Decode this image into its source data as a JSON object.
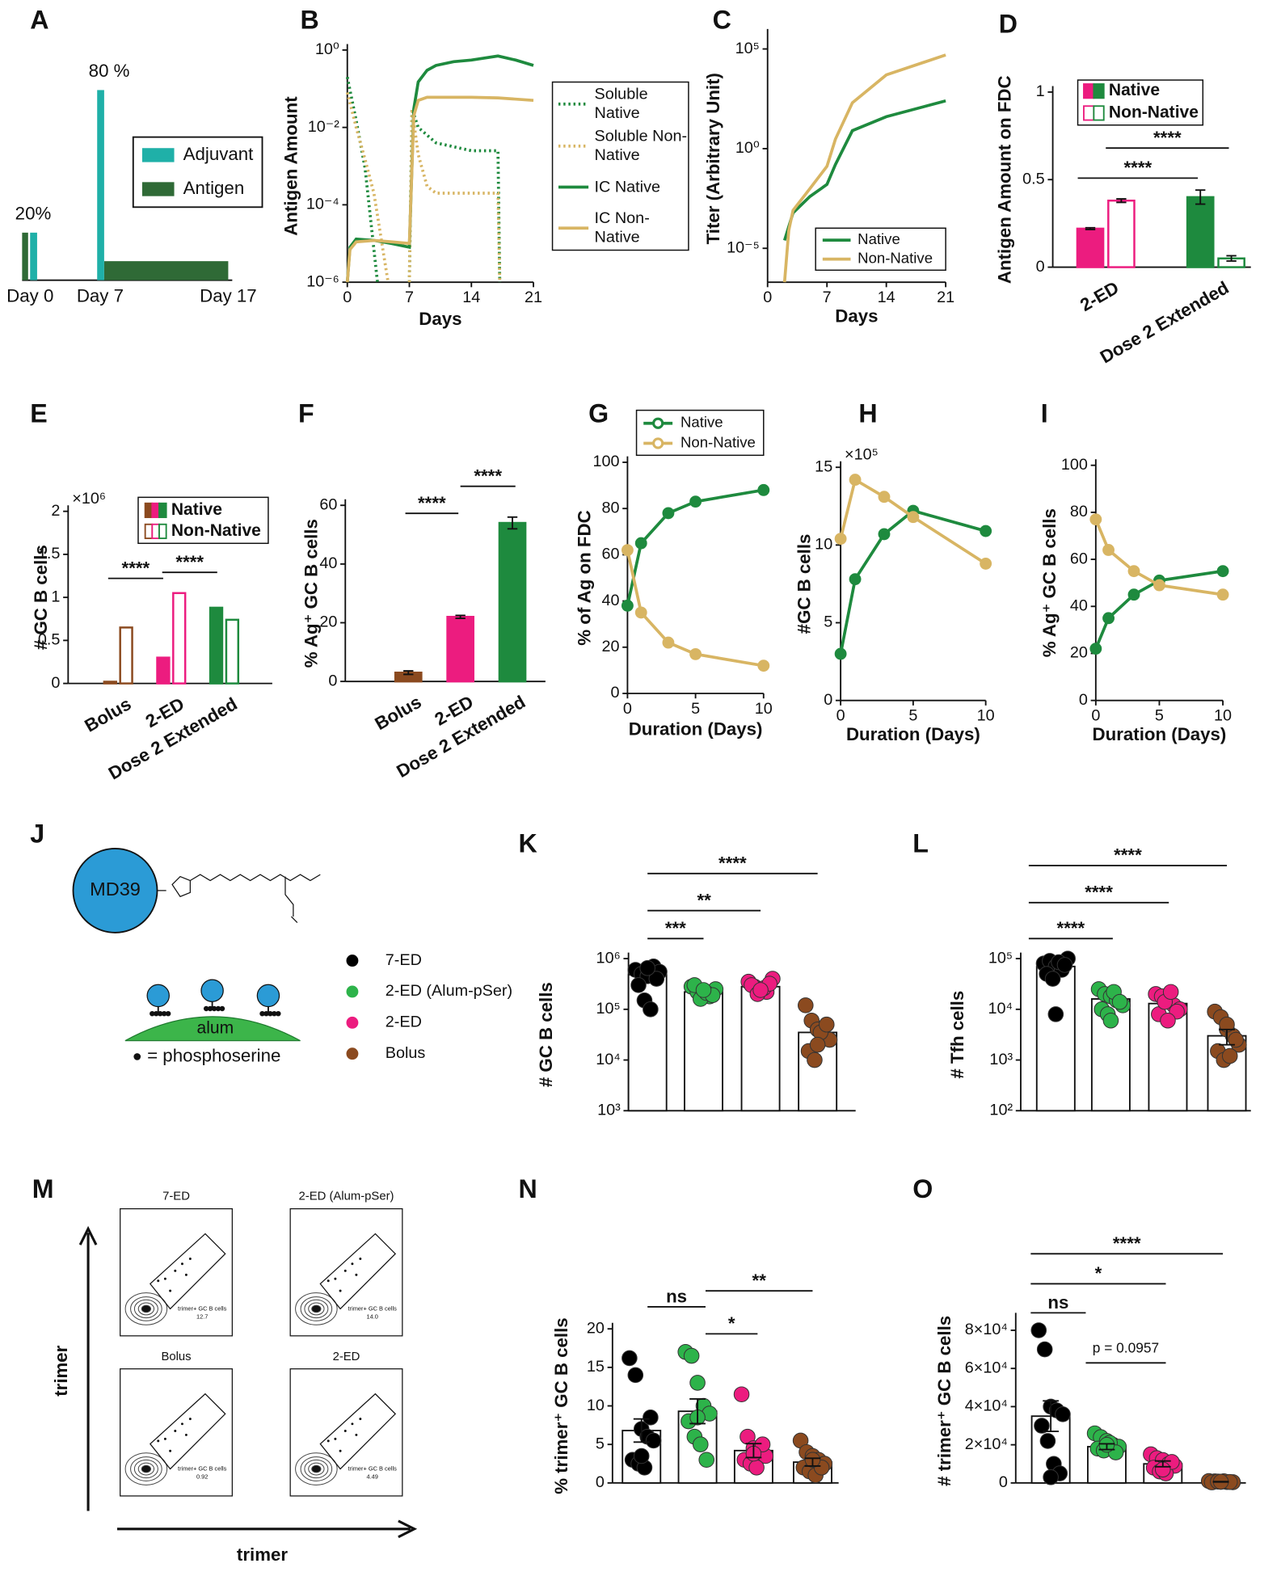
{
  "chart_data": [
    {
      "type": "timeline",
      "panel": "A",
      "x": [
        "Day 0",
        "Day 7",
        "Day 17"
      ],
      "series": [
        {
          "name": "Adjuvant",
          "color": "#1fb0a8",
          "values": [
            20,
            80,
            null
          ],
          "value_labels": [
            "20%",
            "80 %",
            null
          ]
        },
        {
          "name": "Antigen",
          "color": "#2f6a36",
          "values": [
            20,
            8,
            null
          ]
        }
      ]
    },
    {
      "type": "line",
      "panel": "B",
      "xlabel": "Days",
      "ylabel": "Antigen Amount",
      "log_y": true,
      "xlim": [
        0,
        21
      ],
      "xticks": [
        0,
        7,
        14,
        21
      ],
      "ylim": [
        1e-06,
        1
      ],
      "yticks": [
        {
          "value": 1e-06,
          "label": "10⁻⁶"
        },
        {
          "value": 0.0001,
          "label": "10⁻⁴"
        },
        {
          "value": 0.01,
          "label": "10⁻²"
        },
        {
          "value": 1,
          "label": "10⁰"
        }
      ],
      "series": [
        {
          "name": "Soluble Native",
          "color": "#1e8a3e",
          "line_style": "dotted",
          "x": [
            0,
            1,
            2,
            3.4,
            5,
            7,
            7.3,
            8,
            10,
            14,
            17,
            17.2
          ],
          "values": [
            0.2,
            0.015,
            0.0009,
            1e-06,
            null,
            1e-06,
            0.03,
            0.01,
            0.004,
            0.0025,
            0.0025,
            1e-06
          ]
        },
        {
          "name": "Soluble Non-Native",
          "color": "#d8b563",
          "line_style": "dotted",
          "x": [
            0,
            1,
            2,
            3,
            4.6,
            5,
            7,
            7.3,
            8,
            9,
            10,
            14,
            17,
            17.2
          ],
          "values": [
            0.08,
            0.01,
            0.0015,
            0.0002,
            1e-06,
            null,
            1e-06,
            0.03,
            0.002,
            0.0003,
            0.0002,
            0.0002,
            0.0002,
            1e-06
          ]
        },
        {
          "name": "IC Native",
          "color": "#1e8a3e",
          "line_style": "solid",
          "x": [
            0,
            0.3,
            1,
            3,
            5,
            7,
            7.5,
            8,
            9,
            10,
            12,
            14,
            17,
            19,
            21
          ],
          "values": [
            1e-06,
            8e-06,
            1.3e-05,
            1.2e-05,
            1e-05,
            8e-06,
            0.03,
            0.15,
            0.3,
            0.4,
            0.5,
            0.55,
            0.7,
            0.55,
            0.4
          ]
        },
        {
          "name": "IC Non-Native",
          "color": "#d8b563",
          "line_style": "solid",
          "x": [
            0,
            0.3,
            1,
            3,
            5,
            7,
            7.5,
            8,
            9,
            14,
            17,
            21
          ],
          "values": [
            1e-06,
            7e-06,
            1.1e-05,
            1.2e-05,
            1.1e-05,
            1e-05,
            0.02,
            0.05,
            0.06,
            0.06,
            0.058,
            0.05
          ]
        }
      ]
    },
    {
      "type": "line",
      "panel": "C",
      "xlabel": "Days",
      "ylabel": "Titer (Arbitrary Unit)",
      "log_y": true,
      "xlim": [
        0,
        21
      ],
      "xticks": [
        0,
        7,
        14,
        21
      ],
      "ylim": [
        2e-07,
        500000.0
      ],
      "yticks": [
        {
          "value": 1e-05,
          "label": "10⁻⁵"
        },
        {
          "value": 1,
          "label": "10⁰"
        },
        {
          "value": 100000,
          "label": "10⁵"
        }
      ],
      "series": [
        {
          "name": "Native",
          "color": "#1e8a3e",
          "line_style": "solid",
          "x": [
            2,
            3,
            5,
            7,
            8,
            10,
            14,
            21
          ],
          "values": [
            2.5e-05,
            0.0006,
            0.004,
            0.016,
            0.16,
            8,
            40,
            250
          ]
        },
        {
          "name": "Non-Native",
          "color": "#d8b563",
          "line_style": "solid",
          "x": [
            2,
            2.5,
            3,
            5,
            7,
            8,
            10,
            14,
            21
          ],
          "values": [
            2e-07,
            8e-05,
            0.0008,
            0.01,
            0.13,
            3,
            200,
            5000,
            50000
          ]
        }
      ]
    },
    {
      "type": "bar",
      "panel": "D",
      "ylabel": "Antigen Amount on FDC",
      "categories": [
        "2-ED",
        "Dose 2 Extended"
      ],
      "category_colors": [
        "#ec1c7f",
        "#1e8a3e"
      ],
      "ylim": [
        0,
        1
      ],
      "yticks": [
        0,
        0.5,
        1
      ],
      "series": [
        {
          "name": "Native",
          "fill": "solid",
          "values": [
            0.22,
            0.4
          ],
          "errors": [
            0.005,
            0.04
          ]
        },
        {
          "name": "Non-Native",
          "fill": "hollow",
          "values": [
            0.38,
            0.05
          ],
          "errors": [
            0.01,
            0.015
          ]
        }
      ],
      "significance": [
        "****",
        "****"
      ]
    },
    {
      "type": "bar",
      "panel": "E",
      "ylabel": "# GC B cells",
      "y_multiplier": "×10⁶",
      "categories": [
        "Bolus",
        "2-ED",
        "Dose 2 Extended"
      ],
      "category_colors": [
        "#8b4a1f",
        "#ec1c7f",
        "#1e8a3e"
      ],
      "ylim": [
        0,
        2
      ],
      "yticks": [
        0,
        0.5,
        1,
        1.5,
        2
      ],
      "series": [
        {
          "name": "Native",
          "fill": "solid",
          "values": [
            0.02,
            0.3,
            0.88
          ]
        },
        {
          "name": "Non-Native",
          "fill": "hollow",
          "values": [
            0.65,
            1.05,
            0.74
          ]
        }
      ],
      "significance": [
        "****",
        "****"
      ]
    },
    {
      "type": "bar",
      "panel": "F",
      "ylabel": "% Ag⁺ GC B cells",
      "categories": [
        "Bolus",
        "2-ED",
        "Dose 2 Extended"
      ],
      "category_colors": [
        "#8b4a1f",
        "#ec1c7f",
        "#1e8a3e"
      ],
      "ylim": [
        0,
        60
      ],
      "yticks": [
        0,
        20,
        40,
        60
      ],
      "values": [
        3,
        22,
        54
      ],
      "errors": [
        0.6,
        0.5,
        2
      ],
      "significance": [
        "****",
        "****"
      ]
    },
    {
      "type": "line",
      "panel": "G",
      "markers": true,
      "xlabel": "Duration (Days)",
      "ylabel": "% of Ag on FDC",
      "xlim": [
        0,
        10
      ],
      "xticks": [
        0,
        5,
        10
      ],
      "ylim": [
        0,
        100
      ],
      "yticks": [
        0,
        20,
        40,
        60,
        80,
        100
      ],
      "x": [
        0,
        1,
        3,
        5,
        10
      ],
      "series": [
        {
          "name": "Native",
          "color": "#1e8a3e",
          "line_style": "solid",
          "values": [
            38,
            65,
            78,
            83,
            88
          ]
        },
        {
          "name": "Non-Native",
          "color": "#d8b563",
          "line_style": "solid",
          "values": [
            62,
            35,
            22,
            17,
            12
          ]
        }
      ]
    },
    {
      "type": "line",
      "panel": "H",
      "markers": true,
      "xlabel": "Duration (Days)",
      "ylabel": "#GC B cells",
      "y_multiplier": "×10⁵",
      "xlim": [
        0,
        10
      ],
      "xticks": [
        0,
        5,
        10
      ],
      "ylim": [
        0,
        15
      ],
      "yticks": [
        0,
        5,
        10,
        15
      ],
      "x": [
        0,
        1,
        3,
        5,
        10
      ],
      "series": [
        {
          "color": "#1e8a3e",
          "line_style": "solid",
          "values": [
            3,
            7.8,
            10.7,
            12.2,
            10.9
          ]
        },
        {
          "color": "#d8b563",
          "line_style": "solid",
          "values": [
            10.4,
            14.2,
            13.1,
            11.8,
            8.8
          ]
        }
      ]
    },
    {
      "type": "line",
      "panel": "I",
      "markers": true,
      "xlabel": "Duration (Days)",
      "ylabel": "% Ag⁺ GC B cells",
      "xlim": [
        0,
        10
      ],
      "xticks": [
        0,
        5,
        10
      ],
      "ylim": [
        0,
        100
      ],
      "yticks": [
        0,
        20,
        40,
        60,
        80,
        100
      ],
      "x": [
        0,
        1,
        3,
        5,
        10
      ],
      "series": [
        {
          "color": "#1e8a3e",
          "line_style": "solid",
          "values": [
            22,
            35,
            45,
            51,
            55
          ]
        },
        {
          "color": "#d8b563",
          "line_style": "solid",
          "values": [
            77,
            64,
            55,
            49,
            45
          ]
        }
      ]
    },
    {
      "type": "diagram",
      "panel": "J",
      "labels": {
        "protein": "MD39",
        "surface": "alum",
        "key": "= phosphoserine"
      }
    },
    {
      "type": "dotbar",
      "panel": "K",
      "ylabel": "# GC B cells",
      "log_y": true,
      "ylim": [
        1000,
        1000000
      ],
      "yticks": [
        {
          "value": 1000,
          "label": "10³"
        },
        {
          "value": 10000,
          "label": "10⁴"
        },
        {
          "value": 100000,
          "label": "10⁵"
        },
        {
          "value": 1000000,
          "label": "10⁶"
        }
      ],
      "series": [
        {
          "name": "7-ED",
          "color": "#000000",
          "mean": 480000,
          "values": [
            600000,
            500000,
            450000,
            700000,
            550000,
            300000,
            150000,
            100000,
            400000,
            650000
          ]
        },
        {
          "name": "2-ED (Alum-pSer)",
          "color": "#2db34a",
          "mean": 220000,
          "values": [
            280000,
            220000,
            200000,
            180000,
            250000,
            300000,
            160000,
            210000,
            190000,
            240000
          ]
        },
        {
          "name": "2-ED",
          "color": "#ec1c7f",
          "mean": 280000,
          "values": [
            350000,
            280000,
            250000,
            220000,
            400000,
            300000,
            200000,
            260000,
            320000,
            240000
          ]
        },
        {
          "name": "Bolus",
          "color": "#8b4a1f",
          "mean": 35000,
          "values": [
            120000,
            60000,
            40000,
            30000,
            25000,
            15000,
            10000,
            35000,
            50000,
            20000
          ]
        }
      ],
      "significance": [
        "***",
        "**",
        "****"
      ]
    },
    {
      "type": "dotbar",
      "panel": "L",
      "ylabel": "# Tfh cells",
      "log_y": true,
      "ylim": [
        100,
        100000
      ],
      "yticks": [
        {
          "value": 100,
          "label": "10²"
        },
        {
          "value": 1000,
          "label": "10³"
        },
        {
          "value": 10000,
          "label": "10⁴"
        },
        {
          "value": 100000,
          "label": "10⁵"
        }
      ],
      "series": [
        {
          "color": "#000000",
          "mean": 70000,
          "values": [
            80000,
            90000,
            70000,
            60000,
            100000,
            50000,
            40000,
            85000,
            75000,
            8000
          ]
        },
        {
          "color": "#2db34a",
          "mean": 16000,
          "values": [
            25000,
            20000,
            18000,
            15000,
            12000,
            10000,
            8000,
            22000,
            14000,
            6000
          ]
        },
        {
          "color": "#ec1c7f",
          "mean": 13000,
          "values": [
            20000,
            18000,
            15000,
            12000,
            10000,
            8000,
            14000,
            22000,
            9000,
            6000
          ]
        },
        {
          "color": "#8b4a1f",
          "mean": 3000,
          "error": 1000,
          "values": [
            9000,
            7000,
            4000,
            3000,
            2000,
            1500,
            1000,
            1200,
            2500,
            5000
          ]
        }
      ],
      "significance": [
        "****",
        "****",
        "****"
      ]
    },
    {
      "type": "flow",
      "panel": "M",
      "xlabel": "trimer",
      "ylabel": "trimer",
      "plots": [
        {
          "title": "7-ED",
          "gate": "trimer+ GC B cells",
          "value": "12.7"
        },
        {
          "title": "2-ED (Alum-pSer)",
          "gate": "trimer+ GC B cells",
          "value": "14.0"
        },
        {
          "title": "Bolus",
          "gate": "trimer+ GC B cells",
          "value": "0.92"
        },
        {
          "title": "2-ED",
          "gate": "trimer+ GC B cells",
          "value": "4.49"
        }
      ]
    },
    {
      "type": "dotbar",
      "panel": "N",
      "ylabel": "% trimer⁺ GC B cells",
      "ylim": [
        0,
        20
      ],
      "yticks": [
        0,
        5,
        10,
        15,
        20
      ],
      "series": [
        {
          "color": "#000000",
          "mean": 6.8,
          "error": 1.5,
          "values": [
            16.2,
            14,
            7,
            6,
            5.5,
            3,
            2.5,
            2,
            8.5,
            3.5
          ]
        },
        {
          "color": "#2db34a",
          "mean": 9.3,
          "error": 1.6,
          "values": [
            17,
            16.5,
            13,
            10,
            9,
            8,
            6,
            5,
            3,
            8.5
          ]
        },
        {
          "color": "#ec1c7f",
          "mean": 4.2,
          "error": 0.9,
          "values": [
            11.5,
            6,
            4.5,
            4,
            3.5,
            3,
            2.5,
            2,
            5,
            3.8
          ]
        },
        {
          "color": "#8b4a1f",
          "mean": 2.7,
          "error": 0.5,
          "values": [
            5.5,
            4,
            3.5,
            3,
            2.5,
            2,
            1.5,
            1,
            2,
            3
          ]
        }
      ],
      "significance": [
        "ns",
        "**",
        "*"
      ]
    },
    {
      "type": "dotbar",
      "panel": "O",
      "ylabel": "# trimer⁺ GC B cells",
      "ylim": [
        0,
        86000
      ],
      "yticks": [
        0,
        {
          "value": 20000,
          "label": "2×10⁴"
        },
        {
          "value": 40000,
          "label": "4×10⁴"
        },
        {
          "value": 60000,
          "label": "6×10⁴"
        },
        {
          "value": 80000,
          "label": "8×10⁴"
        }
      ],
      "series": [
        {
          "color": "#000000",
          "mean": 35000,
          "error": 8000,
          "values": [
            80000,
            70000,
            40000,
            38000,
            36000,
            30000,
            22000,
            10000,
            5000,
            3000
          ]
        },
        {
          "color": "#2db34a",
          "mean": 19000,
          "error": 1500,
          "values": [
            26000,
            24000,
            22000,
            20000,
            19000,
            18000,
            17000,
            21000,
            16000,
            20000
          ]
        },
        {
          "color": "#ec1c7f",
          "mean": 10000,
          "error": 1500,
          "values": [
            15000,
            13000,
            12000,
            10000,
            9000,
            8000,
            6000,
            5000,
            11000,
            7000
          ]
        },
        {
          "color": "#8b4a1f",
          "mean": 600,
          "error": 100,
          "values": [
            1000,
            800,
            600,
            500,
            400,
            300,
            700,
            900,
            500,
            600
          ]
        }
      ],
      "significance": [
        "****",
        "*",
        "ns",
        "p = 0.0957"
      ]
    }
  ]
}
